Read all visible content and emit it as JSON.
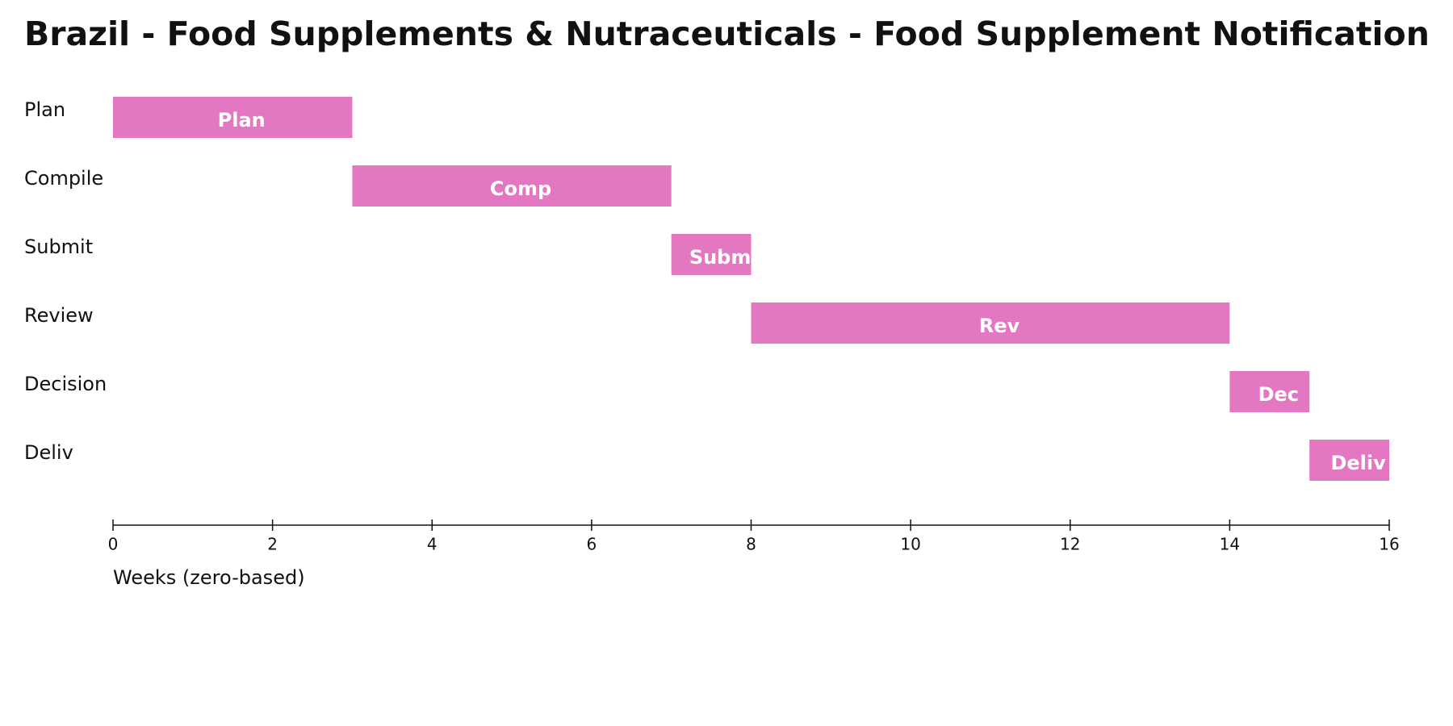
{
  "chart_data": {
    "type": "gantt",
    "title": "Brazil - Food Supplements & Nutraceuticals - Food Supplement Notification",
    "categories": [
      "Plan",
      "Compile",
      "Submit",
      "Review",
      "Decision",
      "Deliv"
    ],
    "start": [
      0,
      3,
      7,
      8,
      14,
      15
    ],
    "end": [
      3,
      7,
      8,
      14,
      15,
      16
    ],
    "bar_labels": [
      "Plan",
      "Comp",
      "Subm",
      "Rev",
      "Dec",
      "Deliv"
    ],
    "color": "#e377c2",
    "xlabel": "Weeks (zero-based)",
    "xlim": [
      0,
      16
    ],
    "xticks": [
      0,
      2,
      4,
      6,
      8,
      10,
      12,
      14,
      16
    ]
  }
}
